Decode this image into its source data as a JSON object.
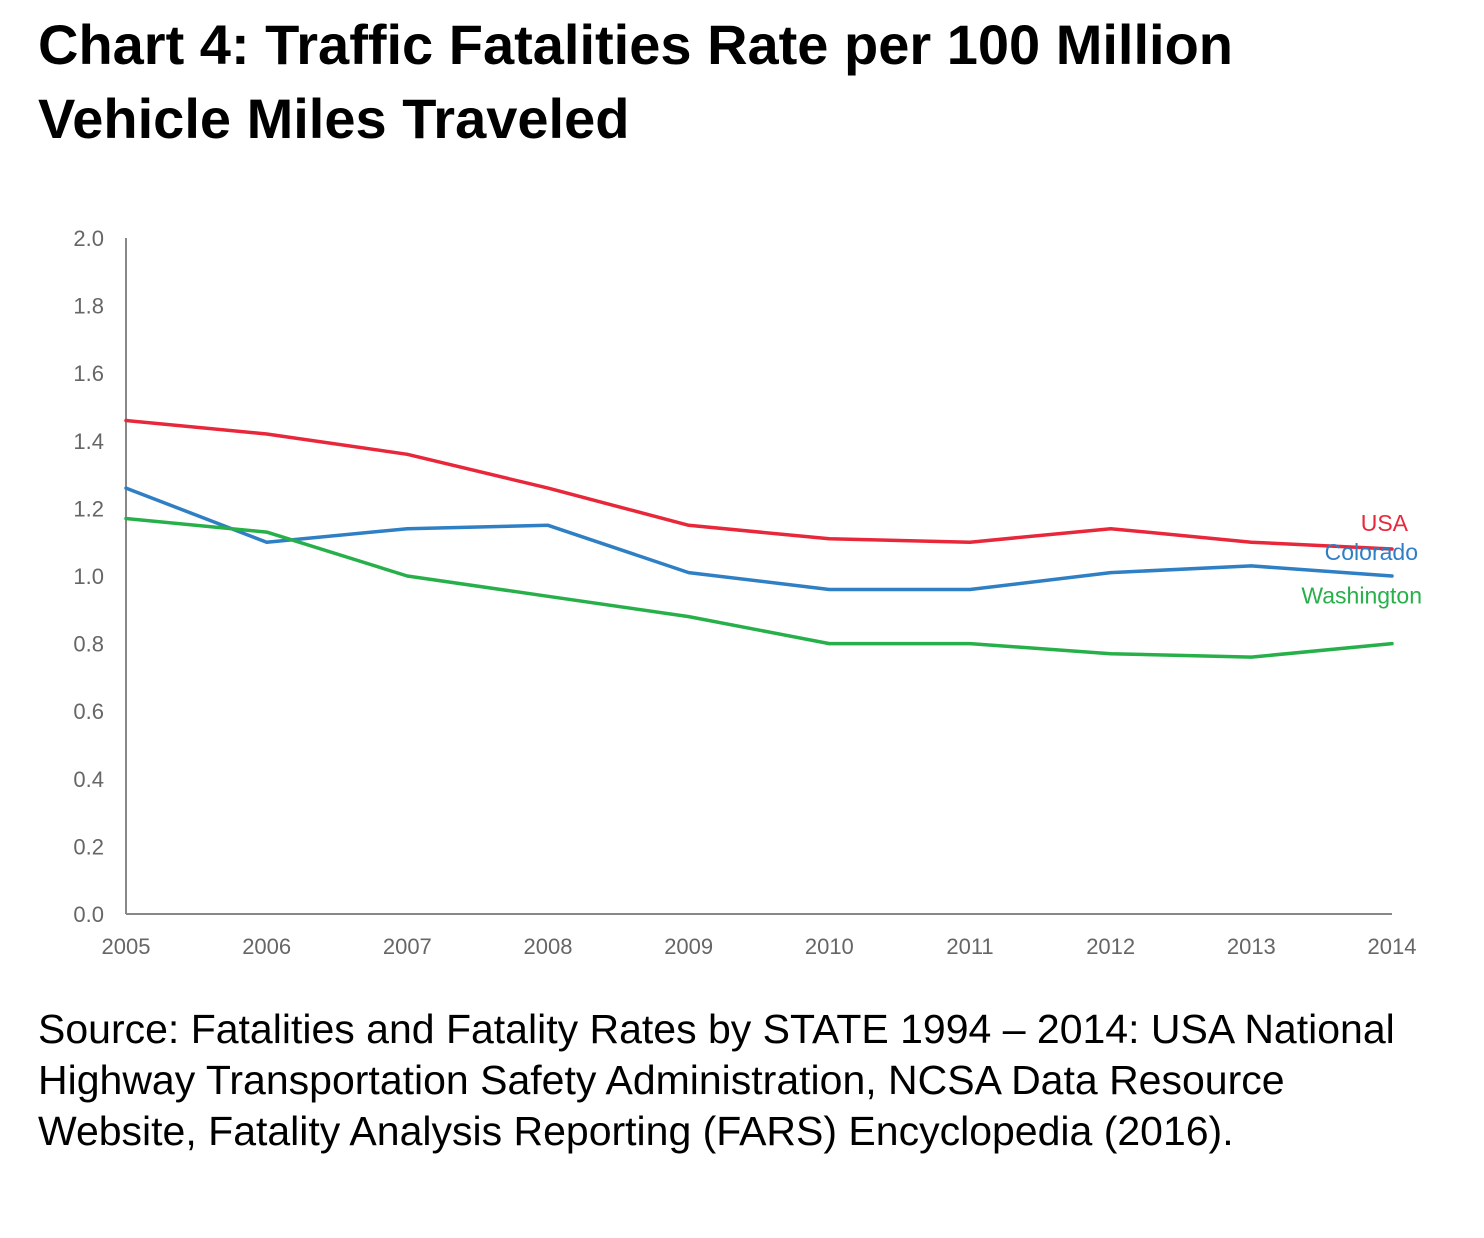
{
  "title": "Chart 4: Traffic Fatalities Rate per 100 Million Vehicle Miles Traveled",
  "source": "Source: Fatalities and Fatality Rates by STATE 1994 – 2014: USA National Highway Transportation Safety Administration, NCSA Data Resource Website, Fatality Analysis Reporting (FARS) Encyclopedia (2016).",
  "chart_data": {
    "type": "line",
    "title": "Chart 4: Traffic Fatalities Rate per 100 Million Vehicle Miles Traveled",
    "xlabel": "",
    "ylabel": "",
    "x": [
      "2005",
      "2006",
      "2007",
      "2008",
      "2009",
      "2010",
      "2011",
      "2012",
      "2013",
      "2014"
    ],
    "ylim": [
      0,
      2.0
    ],
    "yticks": [
      "0.0",
      "0.2",
      "0.4",
      "0.6",
      "0.8",
      "1.0",
      "1.2",
      "1.4",
      "1.6",
      "1.8",
      "2.0"
    ],
    "grid": false,
    "legend": "inline labels at right end of lines",
    "series": [
      {
        "name": "USA",
        "color": "#e8283a",
        "values": [
          1.46,
          1.42,
          1.36,
          1.26,
          1.15,
          1.11,
          1.1,
          1.14,
          1.1,
          1.08
        ]
      },
      {
        "name": "Colorado",
        "color": "#2f7fc4",
        "values": [
          1.26,
          1.1,
          1.14,
          1.15,
          1.01,
          0.96,
          0.96,
          1.01,
          1.03,
          1.0
        ]
      },
      {
        "name": "Washington",
        "color": "#27b04a",
        "values": [
          1.17,
          1.13,
          1.0,
          0.94,
          0.88,
          0.8,
          0.8,
          0.77,
          0.76,
          0.8
        ]
      }
    ]
  }
}
